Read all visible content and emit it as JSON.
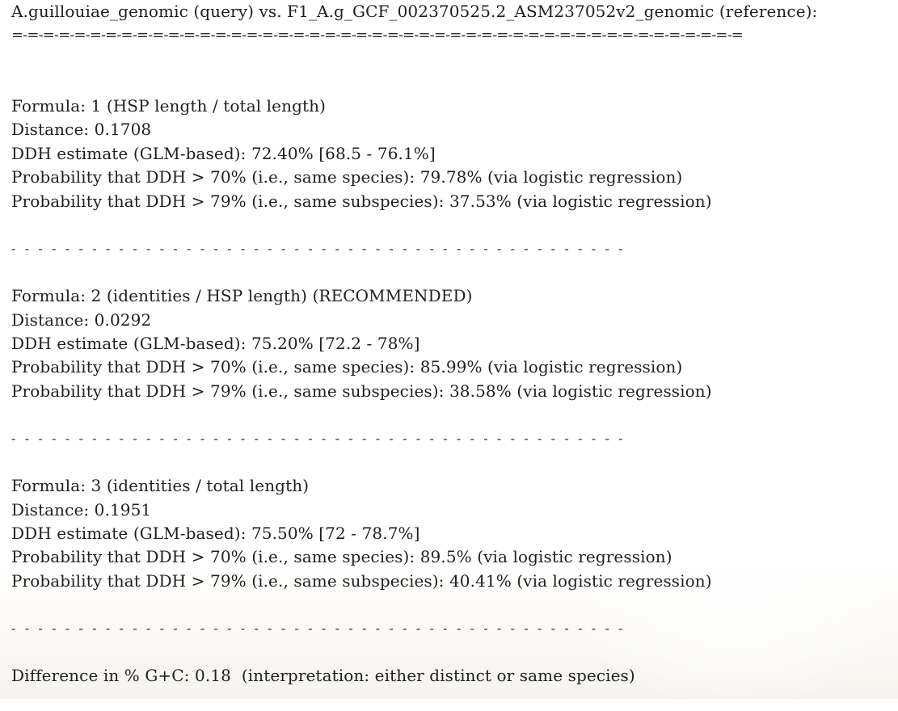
{
  "header": {
    "title": "A.guillouiae_genomic (query) vs. F1_A.g_GCF_002370525.2_ASM237052v2_genomic (reference):",
    "underline": "=-=-=-=-=-=-=-=-=-=-=-=-=-=-=-=-=-=-=-=-=-=-=-=-=-=-=-=-=-=-=-=-=-=-=-=-=-=-=-=-=-=-=-=-=-=-="
  },
  "formulas": [
    {
      "formula": "Formula: 1 (HSP length / total length)",
      "distance": "Distance: 0.1708",
      "ddh": "DDH estimate (GLM-based): 72.40% [68.5 - 76.1%]",
      "prob70": "Probability that DDH > 70% (i.e., same species): 79.78% (via logistic regression)",
      "prob79": "Probability that DDH > 79% (i.e., same subspecies): 37.53% (via logistic regression)",
      "separator": "- - - - - - - - - - - - - - - - - - - - - - - - - - - - - - - - - - - - - - - - - - - - - -"
    },
    {
      "formula": "Formula: 2 (identities / HSP length) (RECOMMENDED)",
      "distance": "Distance: 0.0292",
      "ddh": "DDH estimate (GLM-based): 75.20% [72.2 - 78%]",
      "prob70": "Probability that DDH > 70% (i.e., same species): 85.99% (via logistic regression)",
      "prob79": "Probability that DDH > 79% (i.e., same subspecies): 38.58% (via logistic regression)",
      "separator": "- - - - - - - - - - - - - - - - - - - - - - - - - - - - - - - - - - - - - - - - - - - - - -"
    },
    {
      "formula": "Formula: 3 (identities / total length)",
      "distance": "Distance: 0.1951",
      "ddh": "DDH estimate (GLM-based): 75.50% [72 - 78.7%]",
      "prob70": "Probability that DDH > 70% (i.e., same species): 89.5% (via logistic regression)",
      "prob79": "Probability that DDH > 79% (i.e., same subspecies): 40.41% (via logistic regression)",
      "separator": "- - - - - - - - - - - - - - - - - - - - - - - - - - - - - - - - - - - - - - - - - - - - - -"
    }
  ],
  "gc_difference": "Difference in % G+C: 0.18  (interpretation: either distinct or same species)"
}
